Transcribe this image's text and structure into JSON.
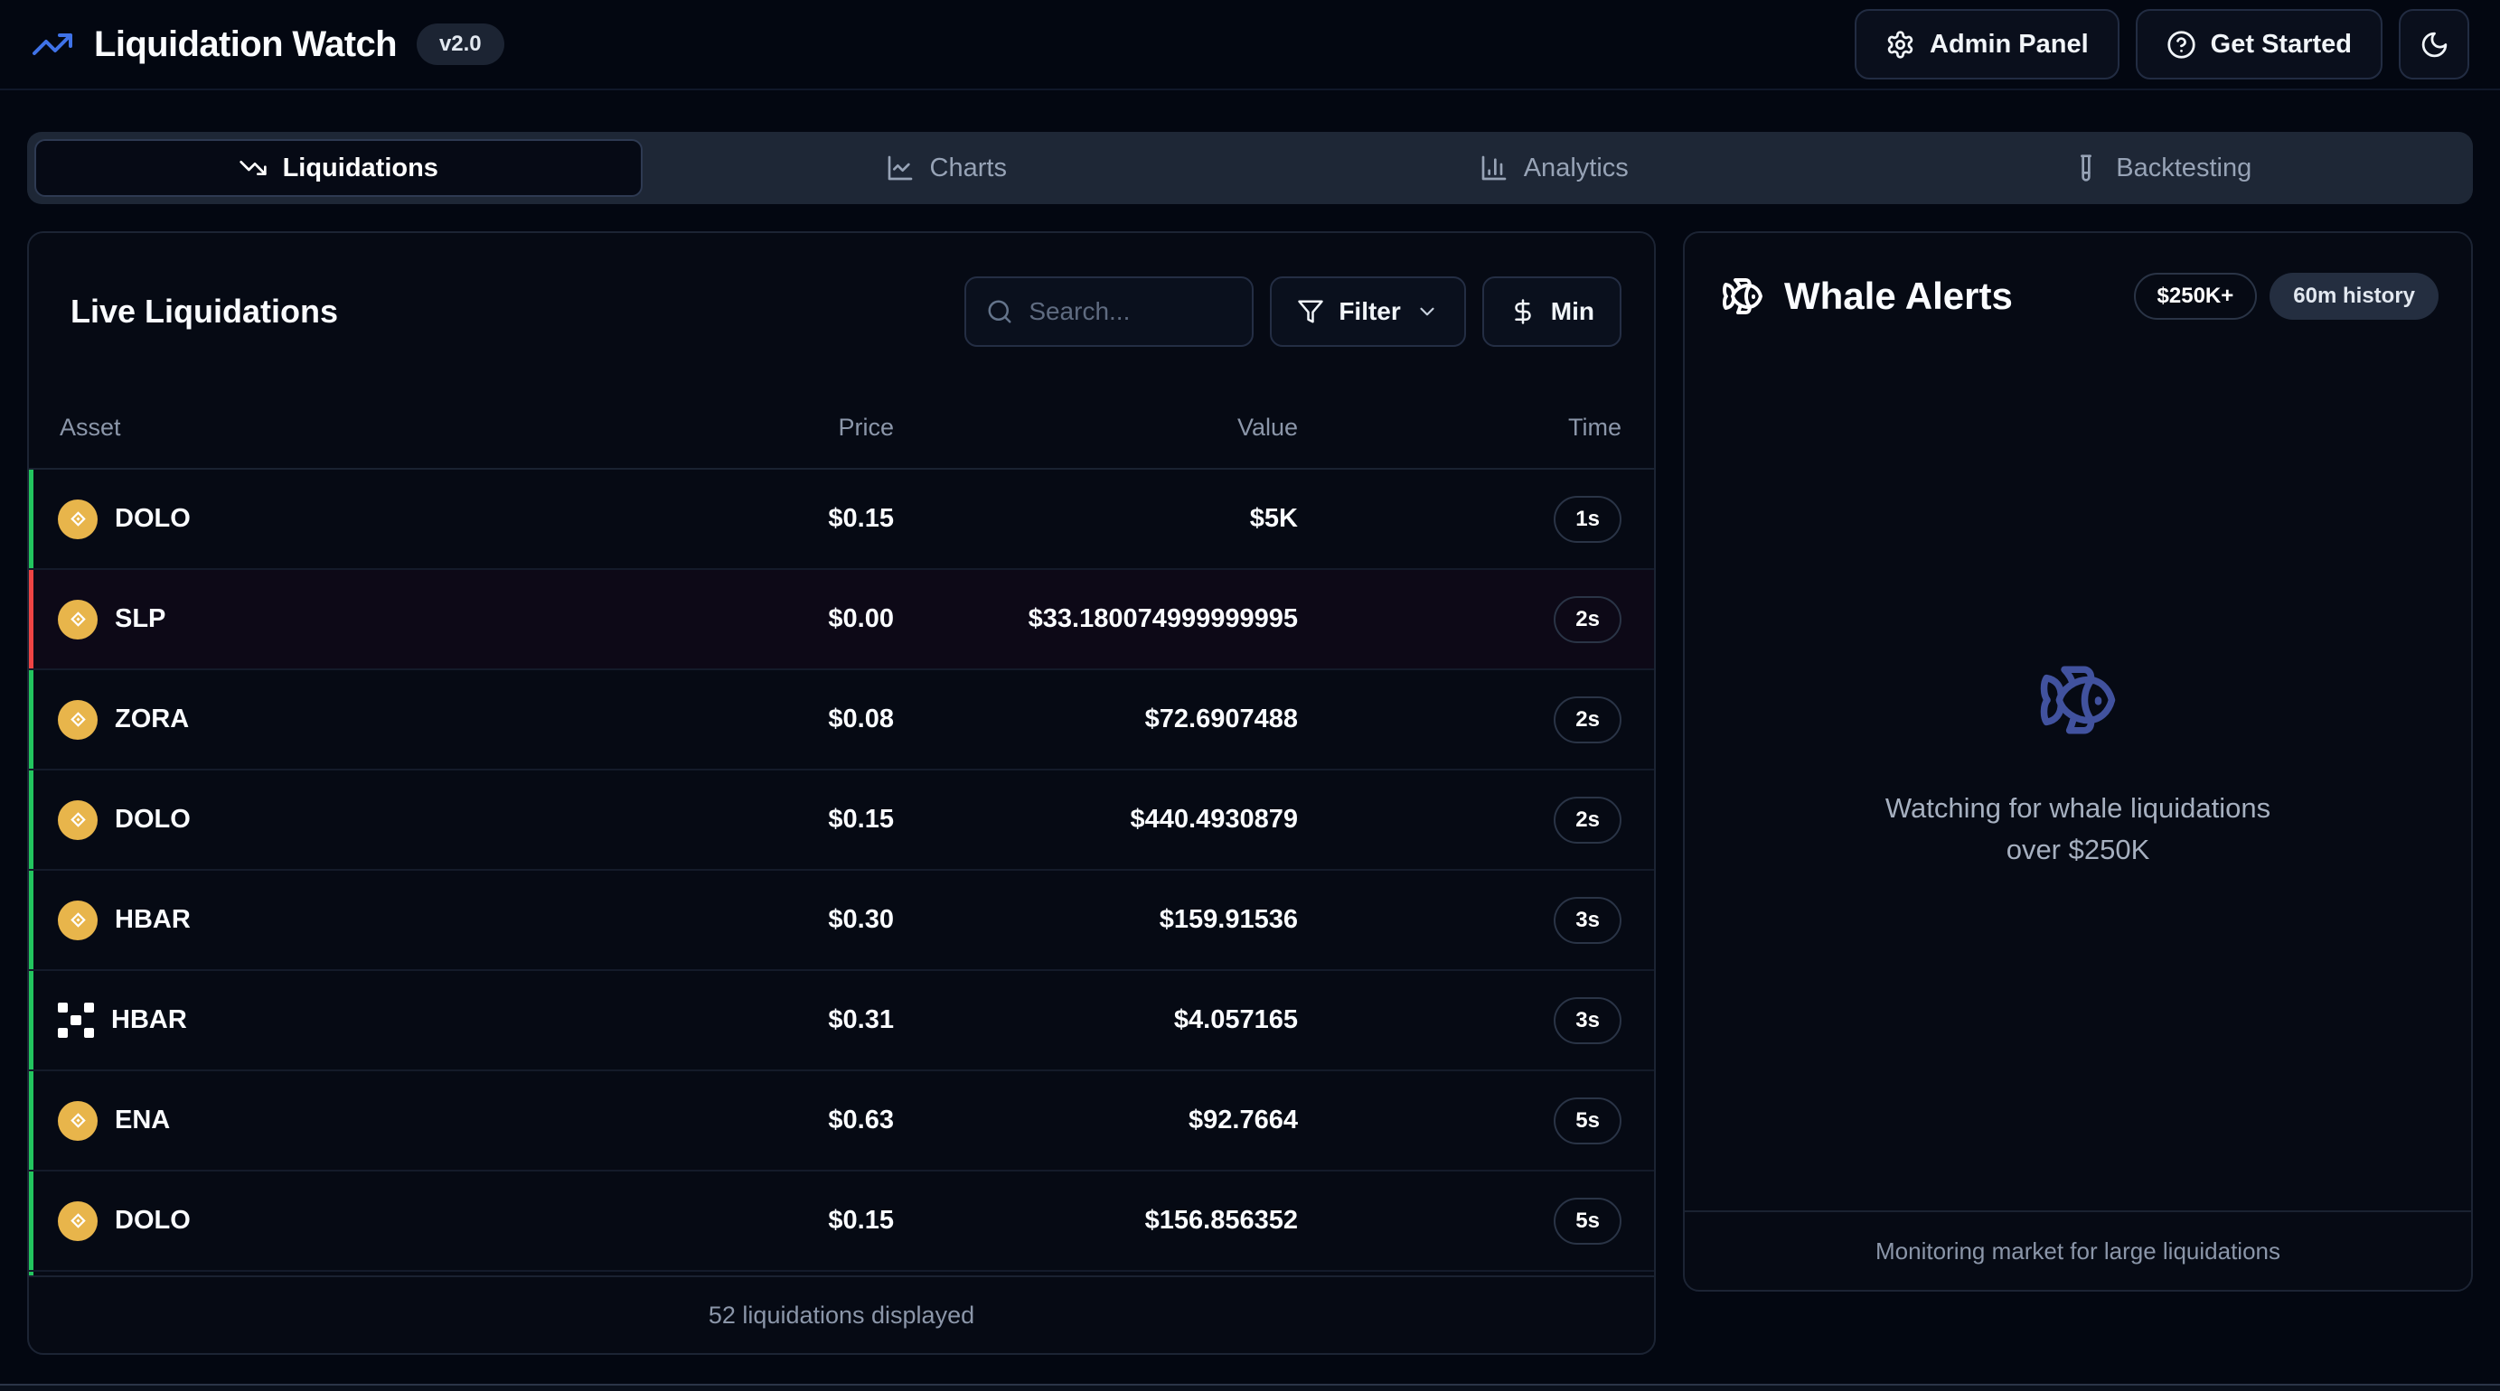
{
  "app": {
    "title": "Liquidation Watch",
    "version_badge": "v2.0"
  },
  "header": {
    "admin_panel_label": "Admin Panel",
    "get_started_label": "Get Started"
  },
  "tabs": [
    {
      "label": "Liquidations",
      "icon": "trending-down-icon",
      "active": true
    },
    {
      "label": "Charts",
      "icon": "line-chart-icon",
      "active": false
    },
    {
      "label": "Analytics",
      "icon": "bar-chart-icon",
      "active": false
    },
    {
      "label": "Backtesting",
      "icon": "test-tube-icon",
      "active": false
    }
  ],
  "liquidations_panel": {
    "title": "Live Liquidations",
    "search_placeholder": "Search...",
    "filter_label": "Filter",
    "min_label": "Min",
    "columns": {
      "asset": "Asset",
      "price": "Price",
      "value": "Value",
      "time": "Time"
    },
    "rows": [
      {
        "asset": "DOLO",
        "icon": "bnb-coin",
        "price": "$0.15",
        "value": "$5K",
        "time": "1s",
        "accent": "green",
        "highlight": false
      },
      {
        "asset": "SLP",
        "icon": "bnb-coin",
        "price": "$0.00",
        "value": "$33.180074999999995",
        "time": "2s",
        "accent": "red",
        "highlight": true
      },
      {
        "asset": "ZORA",
        "icon": "bnb-coin",
        "price": "$0.08",
        "value": "$72.6907488",
        "time": "2s",
        "accent": "green",
        "highlight": false
      },
      {
        "asset": "DOLO",
        "icon": "bnb-coin",
        "price": "$0.15",
        "value": "$440.4930879",
        "time": "2s",
        "accent": "green",
        "highlight": false
      },
      {
        "asset": "HBAR",
        "icon": "bnb-coin",
        "price": "$0.30",
        "value": "$159.91536",
        "time": "3s",
        "accent": "green",
        "highlight": false
      },
      {
        "asset": "HBAR",
        "icon": "pixel-x",
        "price": "$0.31",
        "value": "$4.057165",
        "time": "3s",
        "accent": "green",
        "highlight": false
      },
      {
        "asset": "ENA",
        "icon": "bnb-coin",
        "price": "$0.63",
        "value": "$92.7664",
        "time": "5s",
        "accent": "green",
        "highlight": false
      },
      {
        "asset": "DOLO",
        "icon": "bnb-coin",
        "price": "$0.15",
        "value": "$156.856352",
        "time": "5s",
        "accent": "green",
        "highlight": false
      }
    ],
    "partial_row_accent": "green",
    "footer": "52 liquidations displayed"
  },
  "whale_panel": {
    "title": "Whale Alerts",
    "threshold_badge": "$250K+",
    "history_badge": "60m history",
    "empty_line1": "Watching for whale liquidations",
    "empty_line2": "over $250K",
    "footer": "Monitoring market for large liquidations"
  },
  "colors": {
    "brand_blue": "#3f72e8",
    "accent_green": "#22c55e",
    "accent_red": "#ef4444",
    "coin_gold": "#e8b54b",
    "whale_fish_indigo": "#41529e"
  }
}
